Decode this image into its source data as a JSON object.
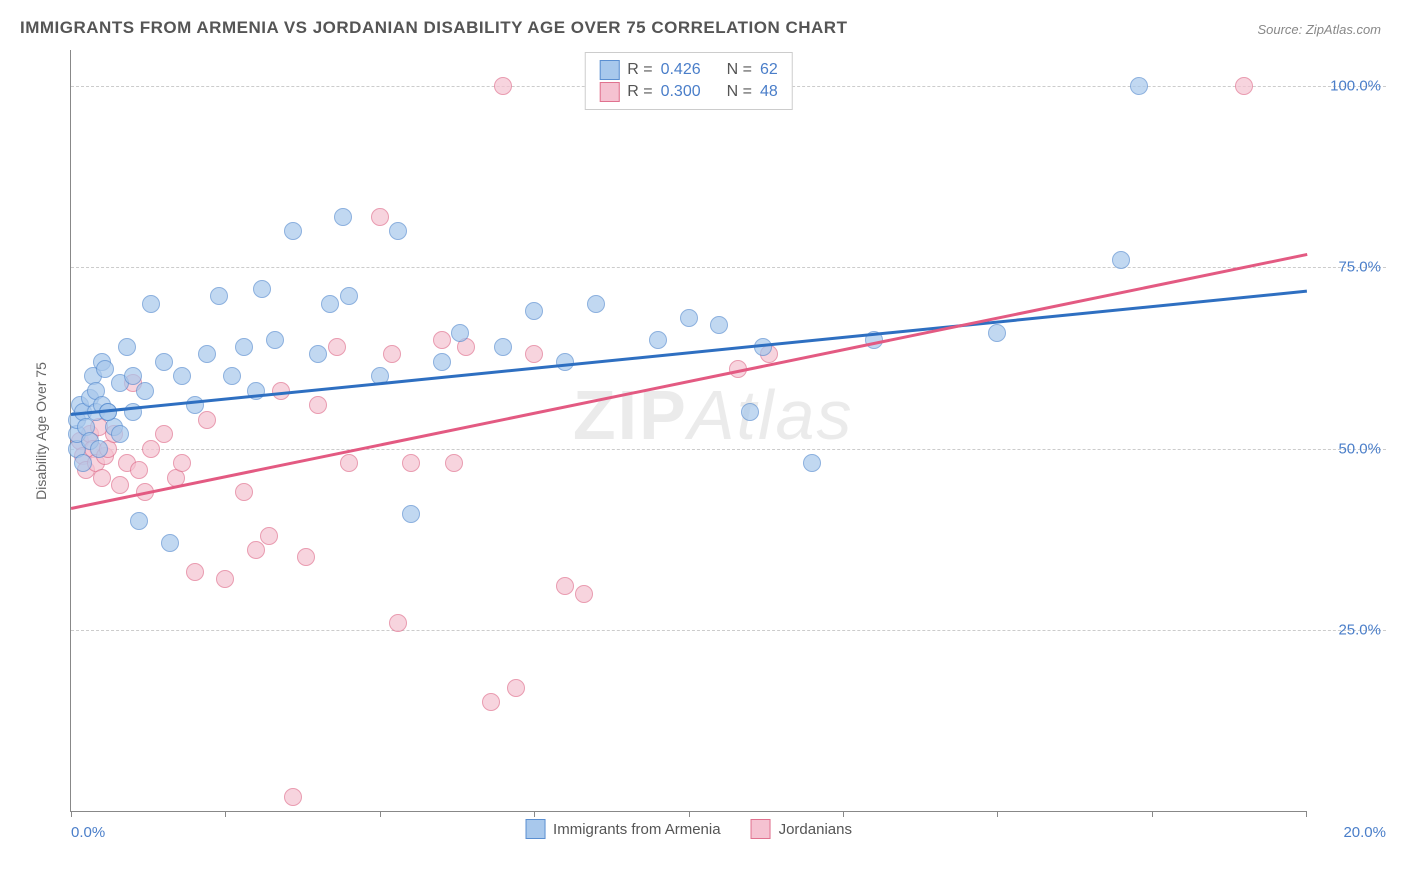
{
  "title": "IMMIGRANTS FROM ARMENIA VS JORDANIAN DISABILITY AGE OVER 75 CORRELATION CHART",
  "source": "Source: ZipAtlas.com",
  "ylabel": "Disability Age Over 75",
  "watermark_bold": "ZIP",
  "watermark_rest": "Atlas",
  "chart": {
    "type": "scatter",
    "xlim": [
      0,
      20
    ],
    "ylim": [
      0,
      105
    ],
    "xtick_positions": [
      0,
      2.5,
      5,
      7.5,
      10,
      12.5,
      15,
      17.5,
      20
    ],
    "xtick_labels_visible": {
      "0": "0.0%",
      "20": "20.0%"
    },
    "ytick_positions": [
      25,
      50,
      75,
      100
    ],
    "ytick_labels": [
      "25.0%",
      "50.0%",
      "75.0%",
      "100.0%"
    ],
    "background_color": "#ffffff",
    "grid_color": "#cccccc",
    "axis_color": "#888888",
    "series": [
      {
        "name": "Immigrants from Armenia",
        "fill": "#a8c8ec",
        "stroke": "#5b8fd1",
        "line_color": "#2e6fc1",
        "R": "0.426",
        "N": "62",
        "trend": {
          "x1": 0,
          "y1": 55,
          "x2": 20,
          "y2": 72
        },
        "points": [
          [
            0.1,
            50
          ],
          [
            0.1,
            52
          ],
          [
            0.1,
            54
          ],
          [
            0.15,
            56
          ],
          [
            0.2,
            48
          ],
          [
            0.2,
            55
          ],
          [
            0.25,
            53
          ],
          [
            0.3,
            57
          ],
          [
            0.3,
            51
          ],
          [
            0.35,
            60
          ],
          [
            0.4,
            55
          ],
          [
            0.4,
            58
          ],
          [
            0.45,
            50
          ],
          [
            0.5,
            56
          ],
          [
            0.5,
            62
          ],
          [
            0.55,
            61
          ],
          [
            0.6,
            55
          ],
          [
            0.7,
            53
          ],
          [
            0.8,
            59
          ],
          [
            0.8,
            52
          ],
          [
            0.9,
            64
          ],
          [
            1.0,
            55
          ],
          [
            1.0,
            60
          ],
          [
            1.1,
            40
          ],
          [
            1.2,
            58
          ],
          [
            1.3,
            70
          ],
          [
            1.5,
            62
          ],
          [
            1.6,
            37
          ],
          [
            1.8,
            60
          ],
          [
            2.0,
            56
          ],
          [
            2.2,
            63
          ],
          [
            2.4,
            71
          ],
          [
            2.6,
            60
          ],
          [
            2.8,
            64
          ],
          [
            3.0,
            58
          ],
          [
            3.1,
            72
          ],
          [
            3.3,
            65
          ],
          [
            3.6,
            80
          ],
          [
            4.0,
            63
          ],
          [
            4.2,
            70
          ],
          [
            4.4,
            82
          ],
          [
            4.5,
            71
          ],
          [
            5.0,
            60
          ],
          [
            5.3,
            80
          ],
          [
            5.5,
            41
          ],
          [
            6.0,
            62
          ],
          [
            6.3,
            66
          ],
          [
            7.0,
            64
          ],
          [
            7.5,
            69
          ],
          [
            8.0,
            62
          ],
          [
            8.5,
            70
          ],
          [
            9.5,
            65
          ],
          [
            10.0,
            68
          ],
          [
            10.5,
            67
          ],
          [
            11.0,
            55
          ],
          [
            11.2,
            64
          ],
          [
            12.0,
            48
          ],
          [
            13.0,
            65
          ],
          [
            15.0,
            66
          ],
          [
            17.0,
            76
          ],
          [
            17.3,
            100
          ],
          [
            0.6,
            55
          ]
        ]
      },
      {
        "name": "Jordanians",
        "fill": "#f5c2d1",
        "stroke": "#e0728f",
        "line_color": "#e35a82",
        "R": "0.300",
        "N": "48",
        "trend": {
          "x1": 0,
          "y1": 42,
          "x2": 20,
          "y2": 77
        },
        "points": [
          [
            0.15,
            51
          ],
          [
            0.2,
            49
          ],
          [
            0.25,
            47
          ],
          [
            0.3,
            52
          ],
          [
            0.35,
            50
          ],
          [
            0.4,
            48
          ],
          [
            0.45,
            53
          ],
          [
            0.5,
            46
          ],
          [
            0.55,
            49
          ],
          [
            0.6,
            50
          ],
          [
            0.7,
            52
          ],
          [
            0.8,
            45
          ],
          [
            0.9,
            48
          ],
          [
            1.0,
            59
          ],
          [
            1.1,
            47
          ],
          [
            1.2,
            44
          ],
          [
            1.3,
            50
          ],
          [
            1.5,
            52
          ],
          [
            1.7,
            46
          ],
          [
            1.8,
            48
          ],
          [
            2.0,
            33
          ],
          [
            2.2,
            54
          ],
          [
            2.5,
            32
          ],
          [
            2.8,
            44
          ],
          [
            3.0,
            36
          ],
          [
            3.2,
            38
          ],
          [
            3.4,
            58
          ],
          [
            3.6,
            2
          ],
          [
            3.8,
            35
          ],
          [
            4.0,
            56
          ],
          [
            4.3,
            64
          ],
          [
            4.5,
            48
          ],
          [
            5.0,
            82
          ],
          [
            5.2,
            63
          ],
          [
            5.3,
            26
          ],
          [
            5.5,
            48
          ],
          [
            6.0,
            65
          ],
          [
            6.2,
            48
          ],
          [
            6.4,
            64
          ],
          [
            6.8,
            15
          ],
          [
            7.0,
            100
          ],
          [
            7.2,
            17
          ],
          [
            7.5,
            63
          ],
          [
            8.0,
            31
          ],
          [
            8.3,
            30
          ],
          [
            10.8,
            61
          ],
          [
            11.3,
            63
          ],
          [
            19.0,
            100
          ]
        ]
      }
    ]
  },
  "legend_top": {
    "rows": [
      {
        "swatch_fill": "#a8c8ec",
        "swatch_stroke": "#5b8fd1",
        "r_label": "R  =",
        "r_val": "0.426",
        "n_label": "N  =",
        "n_val": "62"
      },
      {
        "swatch_fill": "#f5c2d1",
        "swatch_stroke": "#e0728f",
        "r_label": "R  =",
        "r_val": "0.300",
        "n_label": "N  =",
        "n_val": "48"
      }
    ]
  },
  "legend_bottom": {
    "items": [
      {
        "swatch_fill": "#a8c8ec",
        "swatch_stroke": "#5b8fd1",
        "label": "Immigrants from Armenia"
      },
      {
        "swatch_fill": "#f5c2d1",
        "swatch_stroke": "#e0728f",
        "label": "Jordanians"
      }
    ]
  }
}
